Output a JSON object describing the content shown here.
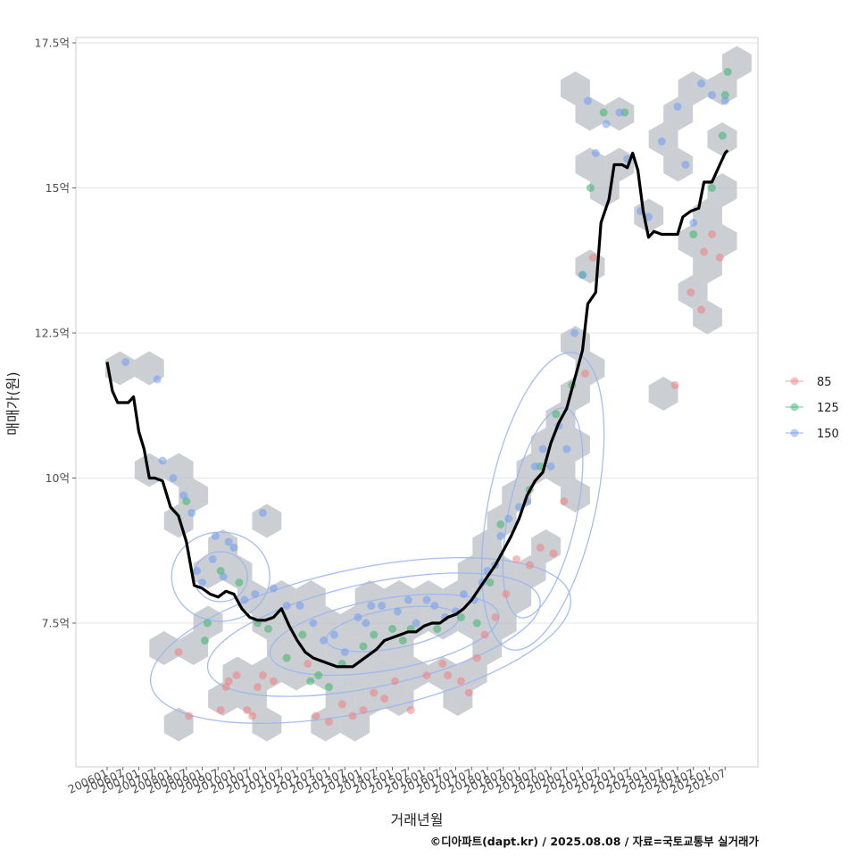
{
  "chart_data": {
    "type": "scatter",
    "title": "",
    "xlabel": "거래년월",
    "ylabel": "매매가(원)",
    "caption": "©디아파트(dapt.kr) / 2025.08.08 / 자료=국토교통부 실거래가",
    "x_ticks": [
      "200601",
      "200607",
      "200701",
      "200707",
      "200801",
      "200807",
      "200901",
      "200907",
      "201001",
      "201007",
      "201101",
      "201107",
      "201201",
      "201207",
      "201301",
      "201307",
      "201401",
      "201407",
      "201501",
      "201507",
      "201601",
      "201607",
      "201701",
      "201707",
      "201801",
      "201807",
      "201901",
      "201907",
      "202001",
      "202007",
      "202101",
      "202107",
      "202201",
      "202207",
      "202301",
      "202307",
      "202401",
      "202407",
      "202501",
      "202507"
    ],
    "y_ticks": [
      {
        "value": 7.5,
        "label": "7.5억"
      },
      {
        "value": 10,
        "label": "10억"
      },
      {
        "value": 12.5,
        "label": "12.5억"
      },
      {
        "value": 15,
        "label": "15억"
      },
      {
        "value": 17.5,
        "label": "17.5억"
      }
    ],
    "ylim": [
      5.0,
      17.6
    ],
    "xlim_months": [
      "2005-04",
      "2025-12"
    ],
    "grid": "horizontal",
    "legend_position": "right",
    "colors": {
      "85": "#f08080",
      "125": "#3cb46e",
      "150": "#6f9cf0",
      "trend": "#000000",
      "hex": "#b9bec4",
      "contour": "#9bb6ee"
    },
    "series": [
      {
        "name": "85",
        "color": "#f08080",
        "points": [
          [
            "2008-04",
            7.0
          ],
          [
            "2008-08",
            5.9
          ],
          [
            "2009-08",
            6.0
          ],
          [
            "2009-10",
            6.4
          ],
          [
            "2009-11",
            6.5
          ],
          [
            "2010-02",
            6.6
          ],
          [
            "2010-06",
            6.0
          ],
          [
            "2010-08",
            5.9
          ],
          [
            "2010-10",
            6.4
          ],
          [
            "2010-12",
            6.6
          ],
          [
            "2011-04",
            6.5
          ],
          [
            "2012-05",
            6.8
          ],
          [
            "2012-08",
            5.9
          ],
          [
            "2013-01",
            5.8
          ],
          [
            "2013-06",
            6.1
          ],
          [
            "2013-10",
            5.9
          ],
          [
            "2014-02",
            6.0
          ],
          [
            "2014-06",
            6.3
          ],
          [
            "2014-10",
            6.2
          ],
          [
            "2015-02",
            6.5
          ],
          [
            "2015-08",
            6.0
          ],
          [
            "2016-02",
            6.6
          ],
          [
            "2016-08",
            6.8
          ],
          [
            "2016-10",
            6.6
          ],
          [
            "2017-03",
            6.5
          ],
          [
            "2017-06",
            6.3
          ],
          [
            "2017-09",
            6.9
          ],
          [
            "2017-12",
            7.3
          ],
          [
            "2018-04",
            7.6
          ],
          [
            "2018-08",
            8.0
          ],
          [
            "2018-12",
            8.6
          ],
          [
            "2019-05",
            8.5
          ],
          [
            "2019-09",
            8.8
          ],
          [
            "2020-02",
            8.7
          ],
          [
            "2020-06",
            9.6
          ],
          [
            "2021-02",
            11.8
          ],
          [
            "2021-05",
            13.8
          ],
          [
            "2023-12",
            11.6
          ],
          [
            "2024-06",
            13.2
          ],
          [
            "2024-10",
            12.9
          ],
          [
            "2024-11",
            13.9
          ],
          [
            "2025-02",
            14.2
          ],
          [
            "2025-05",
            13.8
          ]
        ]
      },
      {
        "name": "125",
        "color": "#3cb46e",
        "points": [
          [
            "2008-07",
            9.6
          ],
          [
            "2009-02",
            7.2
          ],
          [
            "2009-03",
            7.5
          ],
          [
            "2009-08",
            8.4
          ],
          [
            "2010-03",
            8.2
          ],
          [
            "2010-10",
            7.5
          ],
          [
            "2011-02",
            7.4
          ],
          [
            "2011-09",
            6.9
          ],
          [
            "2012-03",
            7.3
          ],
          [
            "2012-06",
            6.5
          ],
          [
            "2012-09",
            6.6
          ],
          [
            "2013-01",
            6.4
          ],
          [
            "2013-06",
            6.8
          ],
          [
            "2014-02",
            7.1
          ],
          [
            "2014-06",
            7.3
          ],
          [
            "2015-01",
            7.4
          ],
          [
            "2015-05",
            7.2
          ],
          [
            "2015-08",
            7.4
          ],
          [
            "2016-06",
            7.4
          ],
          [
            "2017-03",
            7.6
          ],
          [
            "2017-09",
            7.5
          ],
          [
            "2018-02",
            8.2
          ],
          [
            "2018-06",
            9.2
          ],
          [
            "2019-05",
            9.8
          ],
          [
            "2019-09",
            10.2
          ],
          [
            "2020-03",
            11.1
          ],
          [
            "2020-09",
            11.6
          ],
          [
            "2021-01",
            13.5
          ],
          [
            "2021-04",
            15.0
          ],
          [
            "2021-09",
            16.3
          ],
          [
            "2022-05",
            16.3
          ],
          [
            "2024-07",
            14.2
          ],
          [
            "2025-02",
            15.0
          ],
          [
            "2025-06",
            15.9
          ],
          [
            "2025-07",
            16.6
          ],
          [
            "2025-08",
            17.0
          ]
        ]
      },
      {
        "name": "150",
        "color": "#6f9cf0",
        "points": [
          [
            "2006-08",
            12.0
          ],
          [
            "2007-08",
            11.7
          ],
          [
            "2007-10",
            10.3
          ],
          [
            "2008-02",
            10.0
          ],
          [
            "2008-06",
            9.7
          ],
          [
            "2008-09",
            9.4
          ],
          [
            "2008-11",
            8.4
          ],
          [
            "2009-01",
            8.2
          ],
          [
            "2009-05",
            8.6
          ],
          [
            "2009-06",
            9.0
          ],
          [
            "2009-09",
            8.3
          ],
          [
            "2009-11",
            8.9
          ],
          [
            "2010-01",
            8.8
          ],
          [
            "2010-05",
            7.9
          ],
          [
            "2010-09",
            8.0
          ],
          [
            "2010-12",
            9.4
          ],
          [
            "2011-04",
            8.1
          ],
          [
            "2011-09",
            7.8
          ],
          [
            "2012-02",
            7.8
          ],
          [
            "2012-07",
            7.5
          ],
          [
            "2012-11",
            7.2
          ],
          [
            "2013-03",
            7.3
          ],
          [
            "2013-07",
            7.0
          ],
          [
            "2013-12",
            7.6
          ],
          [
            "2014-03",
            7.5
          ],
          [
            "2014-05",
            7.8
          ],
          [
            "2014-09",
            7.8
          ],
          [
            "2015-03",
            7.7
          ],
          [
            "2015-07",
            7.9
          ],
          [
            "2015-10",
            7.5
          ],
          [
            "2016-02",
            7.9
          ],
          [
            "2016-05",
            7.8
          ],
          [
            "2016-09",
            7.6
          ],
          [
            "2017-01",
            7.7
          ],
          [
            "2017-04",
            8.0
          ],
          [
            "2017-08",
            7.9
          ],
          [
            "2017-11",
            8.2
          ],
          [
            "2018-01",
            8.4
          ],
          [
            "2018-04",
            8.5
          ],
          [
            "2018-06",
            9.0
          ],
          [
            "2018-09",
            9.3
          ],
          [
            "2019-01",
            9.5
          ],
          [
            "2019-04",
            9.6
          ],
          [
            "2019-07",
            10.2
          ],
          [
            "2019-10",
            10.5
          ],
          [
            "2020-01",
            10.2
          ],
          [
            "2020-04",
            10.9
          ],
          [
            "2020-07",
            10.5
          ],
          [
            "2020-10",
            12.5
          ],
          [
            "2021-01",
            13.5
          ],
          [
            "2021-03",
            16.5
          ],
          [
            "2021-06",
            15.6
          ],
          [
            "2021-10",
            16.1
          ],
          [
            "2022-03",
            16.3
          ],
          [
            "2022-06",
            15.5
          ],
          [
            "2022-11",
            14.6
          ],
          [
            "2023-02",
            14.5
          ],
          [
            "2023-07",
            15.8
          ],
          [
            "2024-01",
            16.4
          ],
          [
            "2024-04",
            15.4
          ],
          [
            "2024-07",
            14.4
          ],
          [
            "2024-10",
            16.8
          ],
          [
            "2025-02",
            16.6
          ],
          [
            "2025-07",
            16.5
          ]
        ]
      }
    ],
    "trend_series": {
      "name": "",
      "color": "#000000",
      "points": [
        [
          "2006-01",
          12.0
        ],
        [
          "2006-03",
          11.5
        ],
        [
          "2006-05",
          11.3
        ],
        [
          "2006-07",
          11.3
        ],
        [
          "2006-09",
          11.3
        ],
        [
          "2006-11",
          11.4
        ],
        [
          "2007-01",
          10.8
        ],
        [
          "2007-03",
          10.5
        ],
        [
          "2007-05",
          10.0
        ],
        [
          "2007-07",
          10.0
        ],
        [
          "2007-10",
          9.95
        ],
        [
          "2008-01",
          9.5
        ],
        [
          "2008-04",
          9.35
        ],
        [
          "2008-07",
          8.9
        ],
        [
          "2008-10",
          8.15
        ],
        [
          "2009-01",
          8.1
        ],
        [
          "2009-04",
          8.0
        ],
        [
          "2009-07",
          7.95
        ],
        [
          "2009-10",
          8.05
        ],
        [
          "2010-01",
          8.0
        ],
        [
          "2010-04",
          7.75
        ],
        [
          "2010-07",
          7.6
        ],
        [
          "2010-10",
          7.55
        ],
        [
          "2011-01",
          7.55
        ],
        [
          "2011-04",
          7.6
        ],
        [
          "2011-07",
          7.75
        ],
        [
          "2011-10",
          7.45
        ],
        [
          "2012-01",
          7.2
        ],
        [
          "2012-04",
          7.0
        ],
        [
          "2012-07",
          6.9
        ],
        [
          "2012-10",
          6.85
        ],
        [
          "2013-01",
          6.8
        ],
        [
          "2013-04",
          6.75
        ],
        [
          "2013-07",
          6.75
        ],
        [
          "2013-10",
          6.75
        ],
        [
          "2014-01",
          6.85
        ],
        [
          "2014-04",
          6.95
        ],
        [
          "2014-07",
          7.05
        ],
        [
          "2014-10",
          7.2
        ],
        [
          "2015-01",
          7.25
        ],
        [
          "2015-04",
          7.3
        ],
        [
          "2015-07",
          7.35
        ],
        [
          "2015-10",
          7.35
        ],
        [
          "2016-01",
          7.45
        ],
        [
          "2016-04",
          7.5
        ],
        [
          "2016-07",
          7.5
        ],
        [
          "2016-10",
          7.6
        ],
        [
          "2017-01",
          7.65
        ],
        [
          "2017-04",
          7.75
        ],
        [
          "2017-07",
          7.9
        ],
        [
          "2017-10",
          8.1
        ],
        [
          "2018-01",
          8.3
        ],
        [
          "2018-04",
          8.5
        ],
        [
          "2018-07",
          8.75
        ],
        [
          "2018-10",
          9.0
        ],
        [
          "2019-01",
          9.3
        ],
        [
          "2019-04",
          9.7
        ],
        [
          "2019-07",
          9.95
        ],
        [
          "2019-10",
          10.1
        ],
        [
          "2020-01",
          10.6
        ],
        [
          "2020-04",
          10.95
        ],
        [
          "2020-07",
          11.2
        ],
        [
          "2020-10",
          11.7
        ],
        [
          "2021-01",
          12.2
        ],
        [
          "2021-03",
          13.0
        ],
        [
          "2021-06",
          13.2
        ],
        [
          "2021-08",
          14.4
        ],
        [
          "2021-11",
          14.8
        ],
        [
          "2022-01",
          15.4
        ],
        [
          "2022-04",
          15.4
        ],
        [
          "2022-06",
          15.35
        ],
        [
          "2022-08",
          15.6
        ],
        [
          "2022-10",
          15.3
        ],
        [
          "2022-12",
          14.6
        ],
        [
          "2023-02",
          14.15
        ],
        [
          "2023-04",
          14.25
        ],
        [
          "2023-07",
          14.2
        ],
        [
          "2023-10",
          14.2
        ],
        [
          "2024-01",
          14.2
        ],
        [
          "2024-03",
          14.5
        ],
        [
          "2024-06",
          14.6
        ],
        [
          "2024-09",
          14.65
        ],
        [
          "2024-11",
          15.1
        ],
        [
          "2025-02",
          15.1
        ],
        [
          "2025-05",
          15.4
        ],
        [
          "2025-07",
          15.6
        ],
        [
          "2025-08",
          15.65
        ]
      ]
    }
  }
}
